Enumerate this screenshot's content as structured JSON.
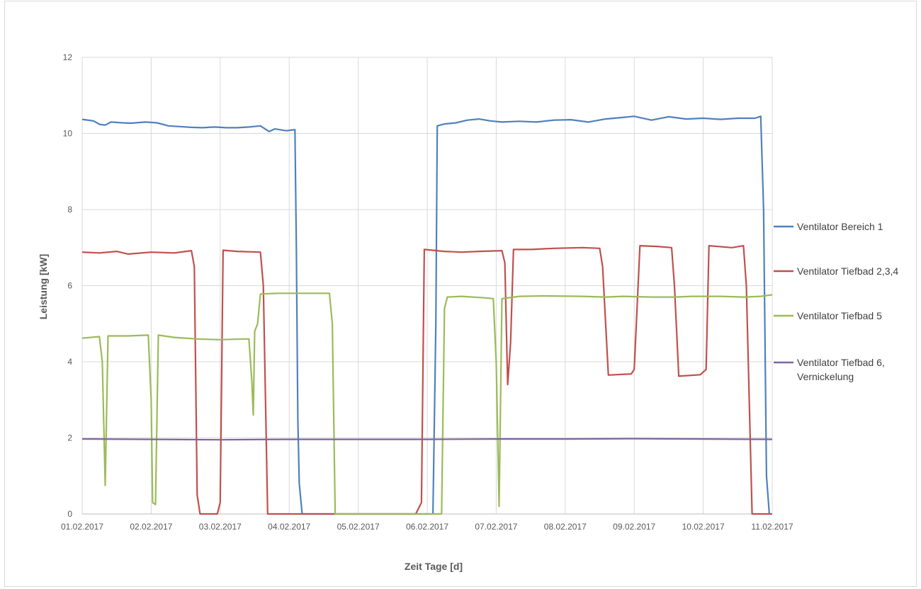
{
  "chart_data": {
    "type": "line",
    "title": "",
    "xlabel": "Zeit Tage [d]",
    "ylabel": "Leistung [kW]",
    "x_ticks": [
      "01.02.2017",
      "02.02.2017",
      "03.02.2017",
      "04.02.2017",
      "05.02.2017",
      "06.02.2017",
      "07.02.2017",
      "08.02.2017",
      "09.02.2017",
      "10.02.2017",
      "11.02.2017"
    ],
    "y_ticks": [
      "0",
      "2",
      "4",
      "6",
      "8",
      "10",
      "12"
    ],
    "ylim": [
      0,
      12
    ],
    "grid": true,
    "legend_position": "right",
    "series": [
      {
        "name": "Ventilator Bereich 1",
        "color": "#4f81bd",
        "points": [
          [
            "01.02.2017 00:00",
            10.37
          ],
          [
            "01.02.2017 04:00",
            10.33
          ],
          [
            "01.02.2017 06:00",
            10.24
          ],
          [
            "01.02.2017 08:00",
            10.22
          ],
          [
            "01.02.2017 10:00",
            10.3
          ],
          [
            "01.02.2017 14:00",
            10.28
          ],
          [
            "01.02.2017 17:00",
            10.27
          ],
          [
            "01.02.2017 22:00",
            10.3
          ],
          [
            "02.02.2017 02:00",
            10.28
          ],
          [
            "02.02.2017 06:00",
            10.2
          ],
          [
            "02.02.2017 10:00",
            10.18
          ],
          [
            "02.02.2017 14:00",
            10.16
          ],
          [
            "02.02.2017 18:00",
            10.15
          ],
          [
            "02.02.2017 22:00",
            10.17
          ],
          [
            "03.02.2017 02:00",
            10.15
          ],
          [
            "03.02.2017 06:00",
            10.15
          ],
          [
            "03.02.2017 10:00",
            10.17
          ],
          [
            "03.02.2017 14:00",
            10.2
          ],
          [
            "03.02.2017 17:00",
            10.05
          ],
          [
            "03.02.2017 19:00",
            10.12
          ],
          [
            "03.02.2017 23:00",
            10.07
          ],
          [
            "04.02.2017 02:00",
            10.1
          ],
          [
            "04.02.2017 02:30",
            7.0
          ],
          [
            "04.02.2017 03:00",
            2.5
          ],
          [
            "04.02.2017 03:30",
            0.8
          ],
          [
            "04.02.2017 04:30",
            0
          ],
          [
            "05.02.2017 12:00",
            0
          ],
          [
            "06.02.2017 00:00",
            0
          ],
          [
            "06.02.2017 02:00",
            0
          ],
          [
            "06.02.2017 03:00",
            5.0
          ],
          [
            "06.02.2017 03:30",
            10.2
          ],
          [
            "06.02.2017 06:00",
            10.25
          ],
          [
            "06.02.2017 10:00",
            10.28
          ],
          [
            "06.02.2017 14:00",
            10.35
          ],
          [
            "06.02.2017 18:00",
            10.38
          ],
          [
            "06.02.2017 22:00",
            10.33
          ],
          [
            "07.02.2017 02:00",
            10.3
          ],
          [
            "07.02.2017 08:00",
            10.32
          ],
          [
            "07.02.2017 14:00",
            10.3
          ],
          [
            "07.02.2017 20:00",
            10.35
          ],
          [
            "08.02.2017 02:00",
            10.36
          ],
          [
            "08.02.2017 08:00",
            10.3
          ],
          [
            "08.02.2017 14:00",
            10.38
          ],
          [
            "08.02.2017 20:00",
            10.42
          ],
          [
            "09.02.2017 00:00",
            10.45
          ],
          [
            "09.02.2017 06:00",
            10.35
          ],
          [
            "09.02.2017 12:00",
            10.44
          ],
          [
            "09.02.2017 18:00",
            10.38
          ],
          [
            "10.02.2017 00:00",
            10.4
          ],
          [
            "10.02.2017 06:00",
            10.37
          ],
          [
            "10.02.2017 12:00",
            10.4
          ],
          [
            "10.02.2017 18:00",
            10.4
          ],
          [
            "10.02.2017 20:00",
            10.45
          ],
          [
            "10.02.2017 21:00",
            8.0
          ],
          [
            "10.02.2017 22:00",
            1.0
          ],
          [
            "10.02.2017 23:00",
            0
          ]
        ]
      },
      {
        "name": "Ventilator Tiefbad 2,3,4",
        "color": "#c0504d",
        "points": [
          [
            "01.02.2017 00:00",
            6.88
          ],
          [
            "01.02.2017 06:00",
            6.86
          ],
          [
            "01.02.2017 12:00",
            6.9
          ],
          [
            "01.02.2017 16:00",
            6.83
          ],
          [
            "02.02.2017 00:00",
            6.88
          ],
          [
            "02.02.2017 08:00",
            6.86
          ],
          [
            "02.02.2017 14:00",
            6.92
          ],
          [
            "02.02.2017 15:00",
            6.5
          ],
          [
            "02.02.2017 16:00",
            0.5
          ],
          [
            "02.02.2017 17:00",
            0
          ],
          [
            "02.02.2017 23:00",
            0
          ],
          [
            "03.02.2017 00:00",
            0.3
          ],
          [
            "03.02.2017 01:00",
            6.93
          ],
          [
            "03.02.2017 06:00",
            6.9
          ],
          [
            "03.02.2017 14:00",
            6.88
          ],
          [
            "03.02.2017 15:00",
            6.0
          ],
          [
            "03.02.2017 16:30",
            0
          ],
          [
            "04.02.2017 00:00",
            0
          ],
          [
            "05.02.2017 00:00",
            0
          ],
          [
            "05.02.2017 20:00",
            0
          ],
          [
            "05.02.2017 22:00",
            0.3
          ],
          [
            "05.02.2017 23:00",
            6.95
          ],
          [
            "06.02.2017 06:00",
            6.9
          ],
          [
            "06.02.2017 12:00",
            6.88
          ],
          [
            "06.02.2017 18:00",
            6.9
          ],
          [
            "07.02.2017 02:00",
            6.92
          ],
          [
            "07.02.2017 03:00",
            6.6
          ],
          [
            "07.02.2017 04:00",
            3.4
          ],
          [
            "07.02.2017 05:00",
            4.5
          ],
          [
            "07.02.2017 06:00",
            6.95
          ],
          [
            "07.02.2017 12:00",
            6.95
          ],
          [
            "07.02.2017 20:00",
            6.98
          ],
          [
            "08.02.2017 06:00",
            7.0
          ],
          [
            "08.02.2017 12:00",
            6.98
          ],
          [
            "08.02.2017 13:00",
            6.5
          ],
          [
            "08.02.2017 15:00",
            3.65
          ],
          [
            "08.02.2017 23:00",
            3.68
          ],
          [
            "09.02.2017 00:00",
            3.8
          ],
          [
            "09.02.2017 02:00",
            7.05
          ],
          [
            "09.02.2017 08:00",
            7.03
          ],
          [
            "09.02.2017 13:00",
            7.0
          ],
          [
            "09.02.2017 14:00",
            6.0
          ],
          [
            "09.02.2017 15:30",
            3.62
          ],
          [
            "09.02.2017 23:00",
            3.66
          ],
          [
            "10.02.2017 01:00",
            3.8
          ],
          [
            "10.02.2017 02:00",
            7.05
          ],
          [
            "10.02.2017 10:00",
            7.0
          ],
          [
            "10.02.2017 14:00",
            7.05
          ],
          [
            "10.02.2017 15:00",
            6.0
          ],
          [
            "10.02.2017 17:00",
            0
          ],
          [
            "11.02.2017 00:00",
            0
          ]
        ]
      },
      {
        "name": "Ventilator Tiefbad 5",
        "color": "#9bbb59",
        "points": [
          [
            "01.02.2017 00:00",
            4.62
          ],
          [
            "01.02.2017 06:00",
            4.66
          ],
          [
            "01.02.2017 07:00",
            4.0
          ],
          [
            "01.02.2017 08:00",
            0.75
          ],
          [
            "01.02.2017 09:00",
            4.68
          ],
          [
            "01.02.2017 16:00",
            4.68
          ],
          [
            "01.02.2017 23:00",
            4.7
          ],
          [
            "02.02.2017 00:00",
            3.0
          ],
          [
            "02.02.2017 00:30",
            0.3
          ],
          [
            "02.02.2017 01:30",
            0.25
          ],
          [
            "02.02.2017 02:30",
            4.7
          ],
          [
            "02.02.2017 08:00",
            4.64
          ],
          [
            "02.02.2017 16:00",
            4.6
          ],
          [
            "03.02.2017 00:00",
            4.58
          ],
          [
            "03.02.2017 08:00",
            4.6
          ],
          [
            "03.02.2017 10:00",
            4.6
          ],
          [
            "03.02.2017 11:00",
            3.5
          ],
          [
            "03.02.2017 11:30",
            2.6
          ],
          [
            "03.02.2017 12:00",
            4.8
          ],
          [
            "03.02.2017 13:00",
            5.0
          ],
          [
            "03.02.2017 14:00",
            5.78
          ],
          [
            "03.02.2017 20:00",
            5.8
          ],
          [
            "04.02.2017 08:00",
            5.8
          ],
          [
            "04.02.2017 14:00",
            5.8
          ],
          [
            "04.02.2017 15:00",
            5.0
          ],
          [
            "04.02.2017 16:00",
            0
          ],
          [
            "05.02.2017 12:00",
            0
          ],
          [
            "06.02.2017 00:00",
            0
          ],
          [
            "06.02.2017 05:00",
            0
          ],
          [
            "06.02.2017 06:00",
            5.4
          ],
          [
            "06.02.2017 07:00",
            5.7
          ],
          [
            "06.02.2017 12:00",
            5.72
          ],
          [
            "06.02.2017 20:00",
            5.68
          ],
          [
            "06.02.2017 23:00",
            5.66
          ],
          [
            "07.02.2017 00:00",
            4.0
          ],
          [
            "07.02.2017 01:00",
            0.2
          ],
          [
            "07.02.2017 02:00",
            5.66
          ],
          [
            "07.02.2017 08:00",
            5.72
          ],
          [
            "07.02.2017 16:00",
            5.73
          ],
          [
            "08.02.2017 06:00",
            5.72
          ],
          [
            "08.02.2017 14:00",
            5.7
          ],
          [
            "08.02.2017 20:00",
            5.72
          ],
          [
            "09.02.2017 06:00",
            5.7
          ],
          [
            "09.02.2017 14:00",
            5.7
          ],
          [
            "09.02.2017 20:00",
            5.72
          ],
          [
            "10.02.2017 06:00",
            5.72
          ],
          [
            "10.02.2017 14:00",
            5.7
          ],
          [
            "10.02.2017 20:00",
            5.72
          ],
          [
            "11.02.2017 00:00",
            5.76
          ]
        ]
      },
      {
        "name": "Ventilator Tiefbad 6, Vernickelung",
        "color": "#8064a2",
        "points": [
          [
            "01.02.2017 00:00",
            1.97
          ],
          [
            "02.02.2017 00:00",
            1.96
          ],
          [
            "03.02.2017 00:00",
            1.95
          ],
          [
            "04.02.2017 00:00",
            1.96
          ],
          [
            "05.02.2017 00:00",
            1.96
          ],
          [
            "06.02.2017 00:00",
            1.96
          ],
          [
            "07.02.2017 00:00",
            1.97
          ],
          [
            "08.02.2017 00:00",
            1.97
          ],
          [
            "09.02.2017 00:00",
            1.98
          ],
          [
            "10.02.2017 00:00",
            1.97
          ],
          [
            "11.02.2017 00:00",
            1.96
          ]
        ]
      }
    ]
  }
}
